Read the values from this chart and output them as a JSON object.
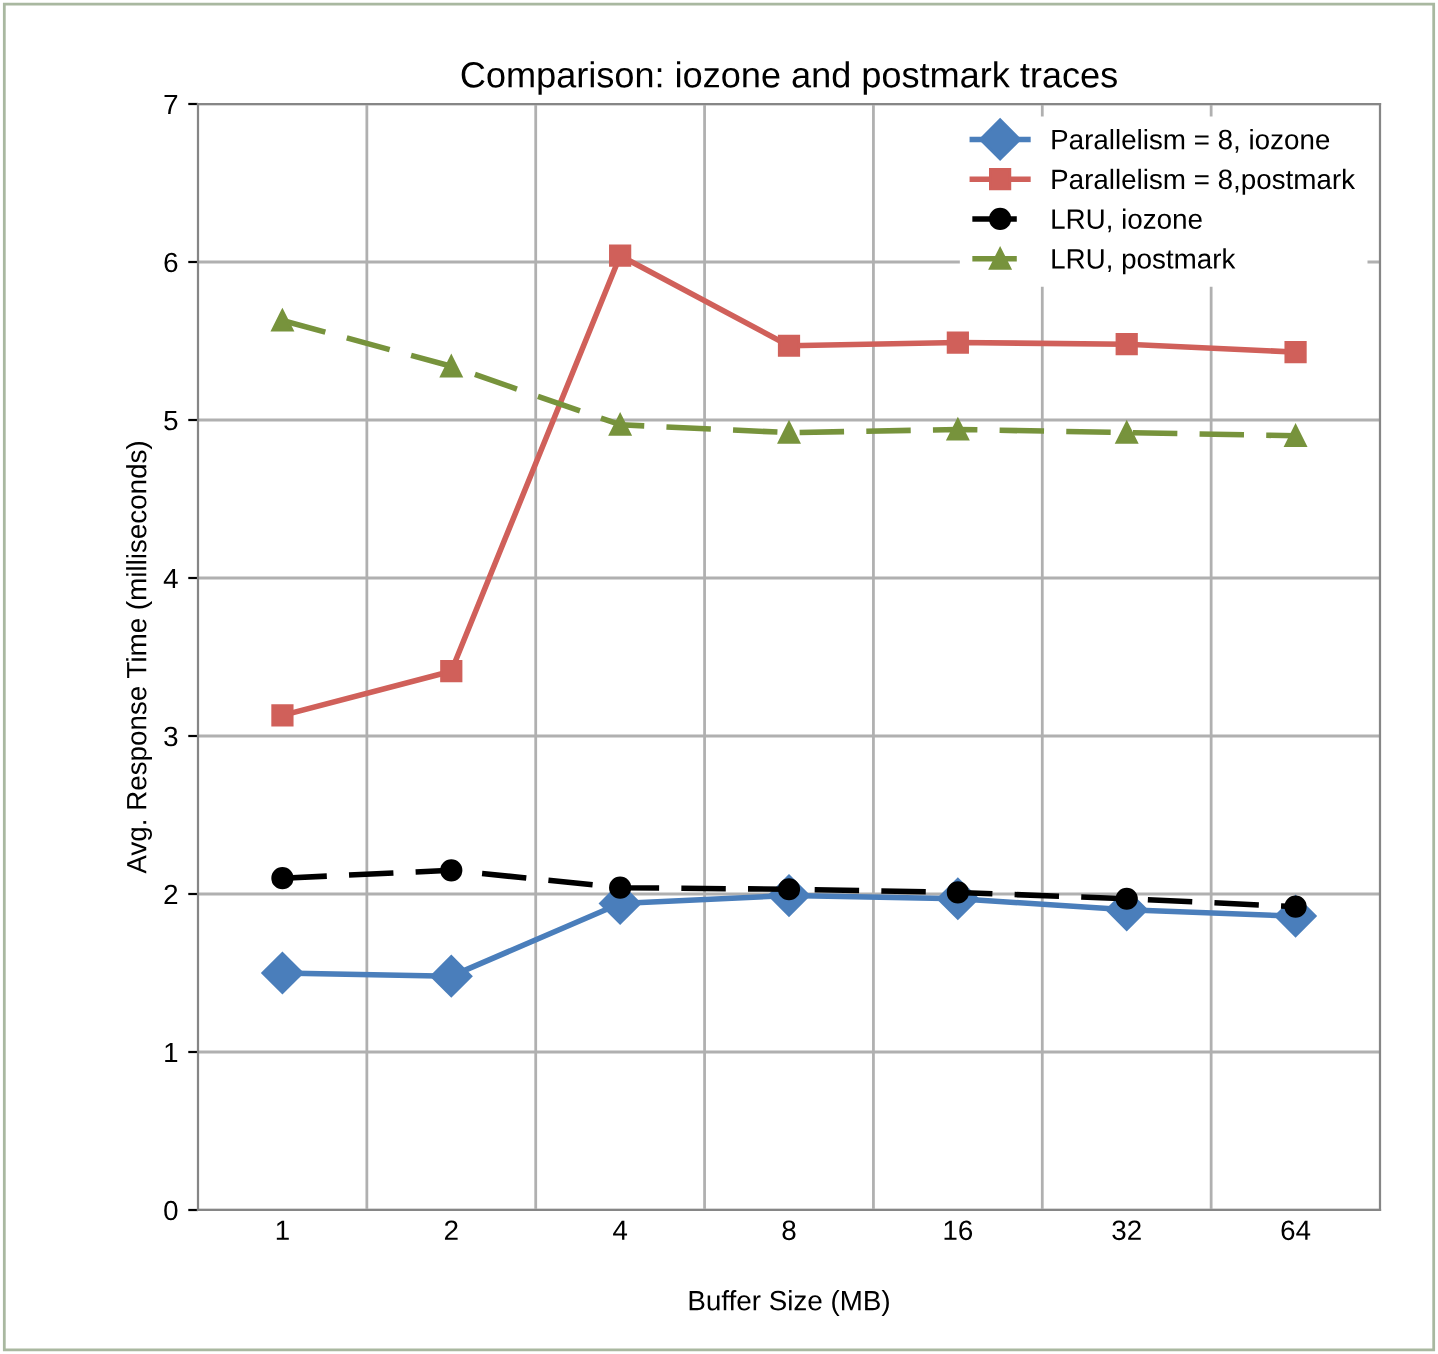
{
  "chart_data": {
    "type": "line",
    "title": "Comparison: iozone and postmark traces",
    "xlabel": "Buffer Size (MB)",
    "ylabel": "Avg. Response Time (milliseconds)",
    "categories": [
      "1",
      "2",
      "4",
      "8",
      "16",
      "32",
      "64"
    ],
    "series": [
      {
        "name": "Parallelism = 8, iozone",
        "color": "#4a7ebb",
        "marker": "diamond",
        "line_style": "solid",
        "values": [
          1.5,
          1.48,
          1.94,
          1.99,
          1.97,
          1.9,
          1.86
        ]
      },
      {
        "name": "Parallelism = 8,postmark",
        "color": "#d0605a",
        "marker": "square",
        "line_style": "solid",
        "values": [
          3.13,
          3.41,
          6.04,
          5.47,
          5.49,
          5.48,
          5.43
        ]
      },
      {
        "name": "LRU, iozone",
        "color": "#000000",
        "marker": "circle",
        "line_style": "dashed",
        "values": [
          2.1,
          2.15,
          2.04,
          2.03,
          2.01,
          1.97,
          1.92
        ]
      },
      {
        "name": "LRU, postmark",
        "color": "#77933c",
        "marker": "triangle",
        "line_style": "dashed",
        "values": [
          5.63,
          5.34,
          4.97,
          4.92,
          4.94,
          4.92,
          4.9
        ]
      }
    ],
    "ylim": [
      0,
      7
    ],
    "yticks": [
      0,
      1,
      2,
      3,
      4,
      5,
      6,
      7
    ],
    "grid": true,
    "legend": "top right"
  }
}
